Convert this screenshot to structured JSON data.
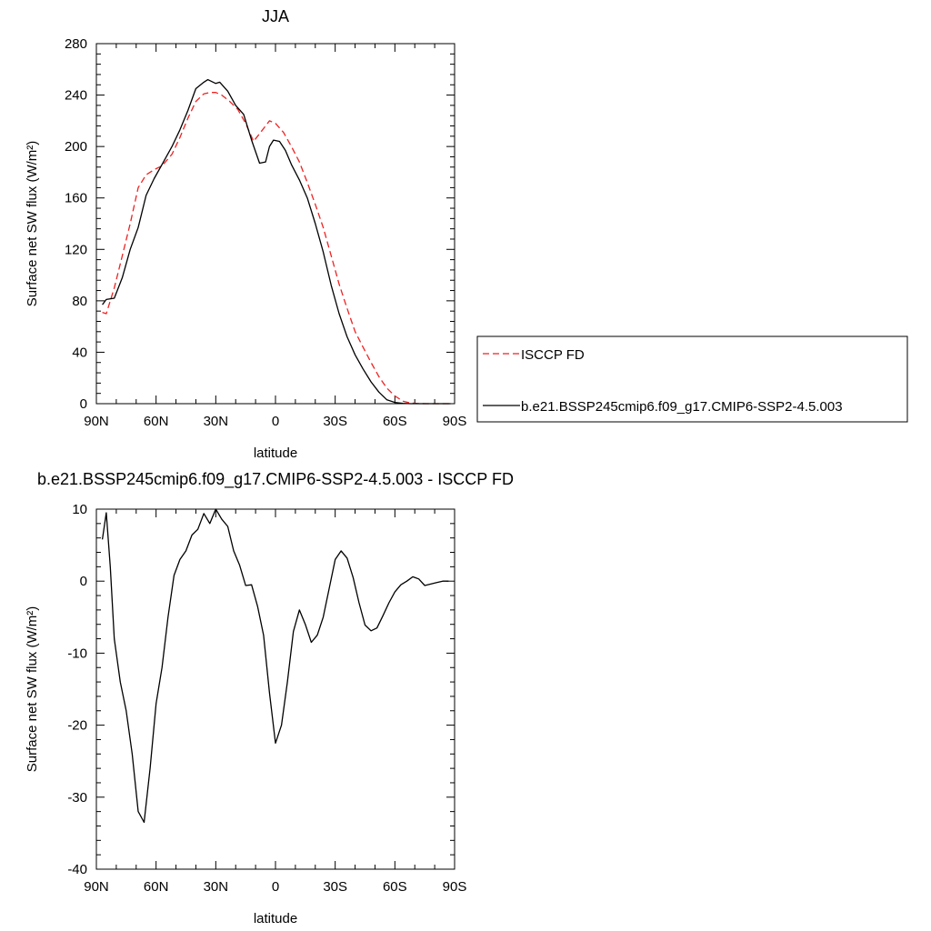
{
  "chart_data": [
    {
      "type": "line",
      "title": "JJA",
      "xlabel": "latitude",
      "ylabel": "Surface net SW flux (W/m²)",
      "xlim": [
        90,
        -90
      ],
      "ylim": [
        0,
        280
      ],
      "xticks": [
        90,
        60,
        30,
        0,
        -30,
        -60,
        -90
      ],
      "xtick_labels": [
        "90N",
        "60N",
        "30N",
        "0",
        "30S",
        "60S",
        "90S"
      ],
      "yticks": [
        0,
        40,
        80,
        120,
        160,
        200,
        240,
        280
      ],
      "ytick_labels": [
        "0",
        "40",
        "80",
        "120",
        "160",
        "200",
        "240",
        "280"
      ],
      "legend_position": "right",
      "series": [
        {
          "name": "ISCCP FD",
          "color": "#ee2222",
          "dash": "dashed",
          "x": [
            87,
            85,
            81,
            77,
            73,
            69,
            65,
            61,
            57,
            52,
            48,
            44,
            40,
            36,
            33,
            30,
            27,
            23,
            19,
            15,
            11,
            7,
            3,
            0,
            -4,
            -8,
            -12,
            -16,
            -20,
            -24,
            -28,
            -32,
            -36,
            -40,
            -44,
            -48,
            -52,
            -56,
            -60,
            -64,
            -68,
            -72,
            -76,
            -80,
            -84,
            -88
          ],
          "y": [
            71,
            70,
            90,
            115,
            140,
            168,
            178,
            182,
            185,
            194,
            207,
            222,
            235,
            241,
            242,
            242,
            240,
            235,
            229,
            218,
            204,
            212,
            220,
            218,
            211,
            200,
            188,
            172,
            155,
            137,
            115,
            93,
            74,
            56,
            44,
            32,
            21,
            12,
            6,
            2,
            0.5,
            0.1,
            0,
            0,
            0,
            0
          ]
        },
        {
          "name": "b.e21.BSSP245cmip6.f09_g17.CMIP6-SSP2-4.5.003",
          "color": "#000000",
          "dash": "solid",
          "x": [
            87,
            85,
            81,
            77,
            73,
            69,
            65,
            61,
            57,
            52,
            48,
            44,
            40,
            36,
            34,
            30,
            28,
            24,
            20,
            16,
            12,
            8,
            5,
            3,
            1,
            -2,
            -5,
            -8,
            -12,
            -16,
            -20,
            -24,
            -28,
            -32,
            -36,
            -40,
            -44,
            -48,
            -52,
            -56,
            -60,
            -64,
            -68,
            -72,
            -76,
            -80,
            -84,
            -88
          ],
          "y": [
            77,
            81,
            82,
            98,
            120,
            137,
            162,
            175,
            186,
            200,
            213,
            228,
            245,
            250,
            252,
            249,
            250,
            243,
            232,
            225,
            205,
            187,
            188,
            200,
            205,
            204,
            197,
            186,
            174,
            160,
            140,
            118,
            92,
            70,
            52,
            38,
            27,
            17,
            9,
            3,
            1,
            0.3,
            0,
            0,
            0,
            0,
            0,
            0
          ]
        }
      ]
    },
    {
      "type": "line",
      "title": "b.e21.BSSP245cmip6.f09_g17.CMIP6-SSP2-4.5.003 - ISCCP FD",
      "xlabel": "latitude",
      "ylabel": "Surface net SW flux (W/m²)",
      "xlim": [
        90,
        -90
      ],
      "ylim": [
        -40,
        10
      ],
      "xticks": [
        90,
        60,
        30,
        0,
        -30,
        -60,
        -90
      ],
      "xtick_labels": [
        "90N",
        "60N",
        "30N",
        "0",
        "30S",
        "60S",
        "90S"
      ],
      "yticks": [
        -40,
        -30,
        -20,
        -10,
        0,
        10
      ],
      "ytick_labels": [
        "-40",
        "-30",
        "-20",
        "-10",
        "0",
        "10"
      ],
      "series": [
        {
          "color": "#000000",
          "dash": "solid",
          "x": [
            87,
            85,
            83,
            81,
            78,
            75,
            72,
            69,
            66,
            63,
            60,
            57,
            54,
            51,
            48,
            45,
            42,
            39,
            36,
            33,
            30,
            27,
            24,
            21,
            18,
            15,
            12,
            9,
            6,
            3,
            0,
            -3,
            -6,
            -9,
            -12,
            -15,
            -18,
            -21,
            -24,
            -27,
            -30,
            -33,
            -36,
            -39,
            -42,
            -45,
            -48,
            -51,
            -54,
            -57,
            -60,
            -63,
            -66,
            -69,
            -72,
            -75,
            -78,
            -81,
            -84,
            -87
          ],
          "y": [
            5.8,
            9.5,
            2,
            -8,
            -14,
            -18,
            -24,
            -32,
            -33.5,
            -26,
            -17,
            -12,
            -5,
            0.8,
            3,
            4.2,
            6.4,
            7.2,
            9.4,
            8,
            10,
            8.6,
            7.6,
            4.2,
            2.2,
            -0.6,
            -0.5,
            -3.5,
            -7.5,
            -15.5,
            -22.5,
            -20,
            -14,
            -7,
            -4,
            -6,
            -8.5,
            -7.5,
            -5,
            -1,
            3,
            4.2,
            3.2,
            0.5,
            -3,
            -6.1,
            -6.9,
            -6.5,
            -4.8,
            -3,
            -1.5,
            -0.5,
            0,
            0.6,
            0.3,
            -0.6,
            -0.4,
            -0.2,
            0,
            0
          ]
        }
      ]
    }
  ]
}
